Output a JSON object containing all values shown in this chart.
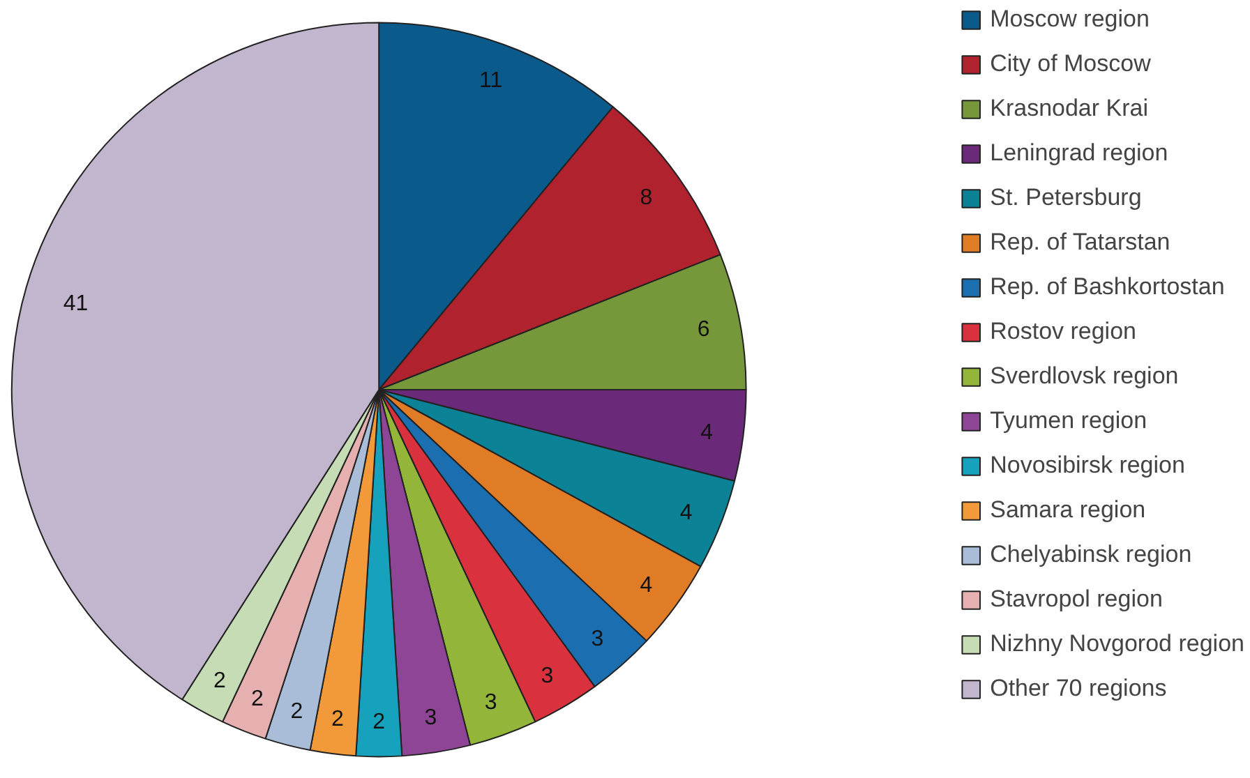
{
  "chart_data": {
    "type": "pie",
    "categories": [
      "Moscow region",
      "City of Moscow",
      "Krasnodar Krai",
      "Leningrad region",
      "St. Petersburg",
      "Rep. of Tatarstan",
      "Rep. of Bashkortostan",
      "Rostov region",
      "Sverdlovsk region",
      "Tyumen region",
      "Novosibirsk region",
      "Samara region",
      "Chelyabinsk region",
      "Stavropol region",
      "Nizhny Novgorod region",
      "Other 70 regions"
    ],
    "values": [
      11,
      8,
      6,
      4,
      4,
      4,
      3,
      3,
      3,
      3,
      2,
      2,
      2,
      2,
      2,
      41
    ],
    "colors": [
      "#0a5a8c",
      "#b0232e",
      "#76973a",
      "#6a2a79",
      "#0c8296",
      "#e07b26",
      "#1b6fb0",
      "#d9313d",
      "#93b53a",
      "#8f4595",
      "#16a2bc",
      "#f29a3a",
      "#a9bcd8",
      "#e7b0b0",
      "#c6dcb4",
      "#c2b6ce"
    ],
    "data_labels": true,
    "legend": "right"
  }
}
